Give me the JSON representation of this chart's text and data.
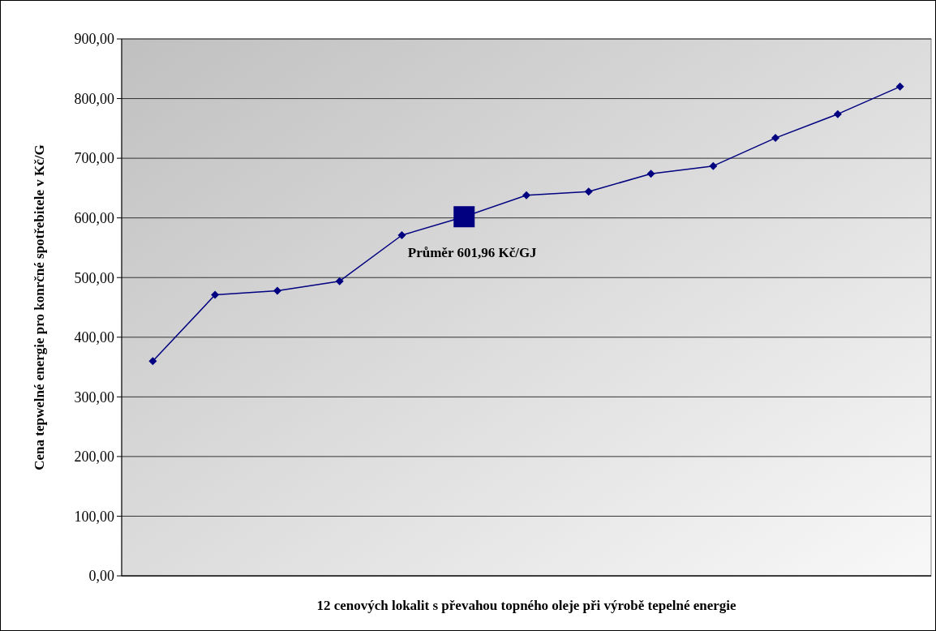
{
  "chart_data": {
    "type": "line",
    "xlabel": "12 cenových lokalit s převahou topného oleje při výrobě tepelné energie",
    "ylabel": "Cena tepwelné energie pro konrčné spotřebitele v Kč/G",
    "categories": [
      null,
      null,
      null,
      null,
      null,
      null,
      null,
      null,
      null,
      null,
      null,
      null,
      null
    ],
    "series": [
      {
        "color": "#000080",
        "marker": "diamond",
        "values": [
          360,
          471,
          478,
          494,
          571,
          601.96,
          638,
          644,
          674,
          687,
          734,
          774,
          820
        ]
      },
      {
        "type": "scatter",
        "color": "#000080",
        "marker": "square",
        "values": [
          null,
          null,
          null,
          null,
          null,
          601.96,
          null,
          null,
          null,
          null,
          null,
          null,
          null
        ]
      }
    ],
    "annotations": [
      {
        "text": "Průměr 601,96 Kč/GJ",
        "y": 601.96
      }
    ],
    "ylim": [
      0,
      900
    ],
    "yticks": [
      {
        "value": 0,
        "label": "0,00"
      },
      {
        "value": 100,
        "label": "100,00"
      },
      {
        "value": 200,
        "label": "200,00"
      },
      {
        "value": 300,
        "label": "300,00"
      },
      {
        "value": 400,
        "label": "400,00"
      },
      {
        "value": 500,
        "label": "500,00"
      },
      {
        "value": 600,
        "label": "600,00"
      },
      {
        "value": 700,
        "label": "700,00"
      },
      {
        "value": 800,
        "label": "800,00"
      },
      {
        "value": 900,
        "label": "900,00"
      }
    ],
    "grid": "y",
    "tick_labels": "y"
  }
}
